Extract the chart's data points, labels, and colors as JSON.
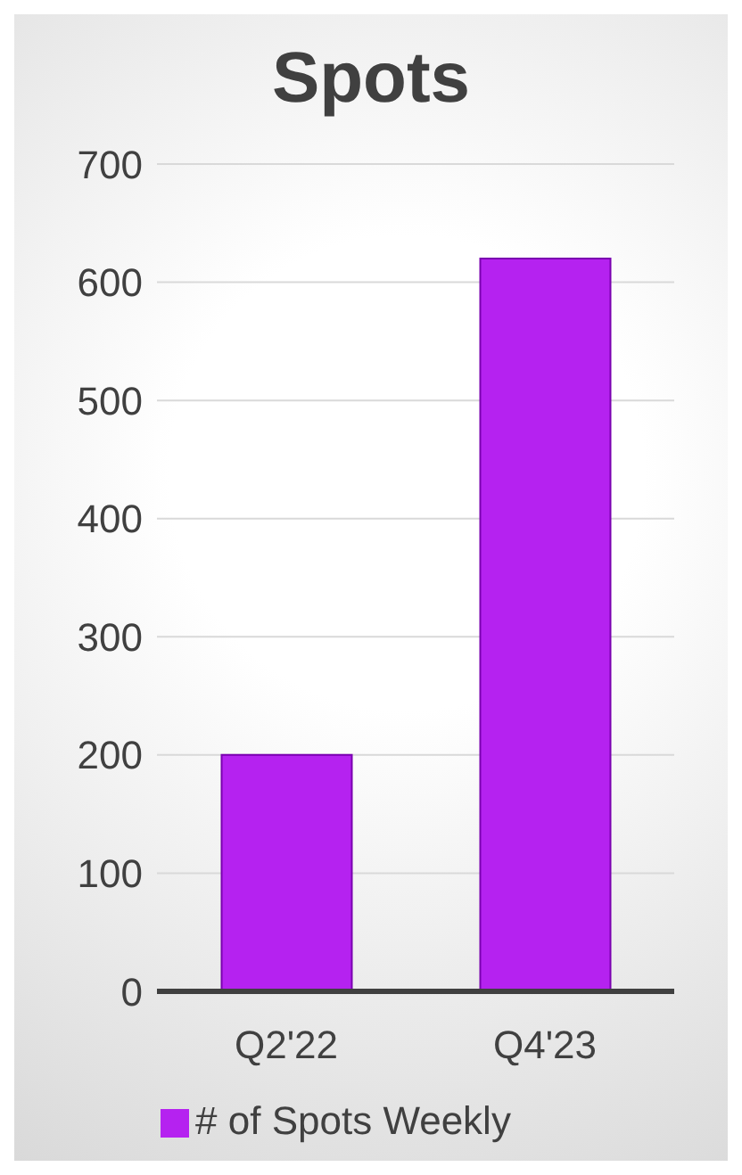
{
  "chart_data": {
    "type": "bar",
    "title": "Spots",
    "categories": [
      "Q2'22",
      "Q4'23"
    ],
    "series": [
      {
        "name": "# of Spots Weekly",
        "color": "#b522f0",
        "values": [
          200,
          620
        ]
      }
    ],
    "ylim": [
      0,
      700
    ],
    "yticks": [
      0,
      100,
      200,
      300,
      400,
      500,
      600,
      700
    ],
    "grid": "y",
    "legend": "bottom"
  }
}
